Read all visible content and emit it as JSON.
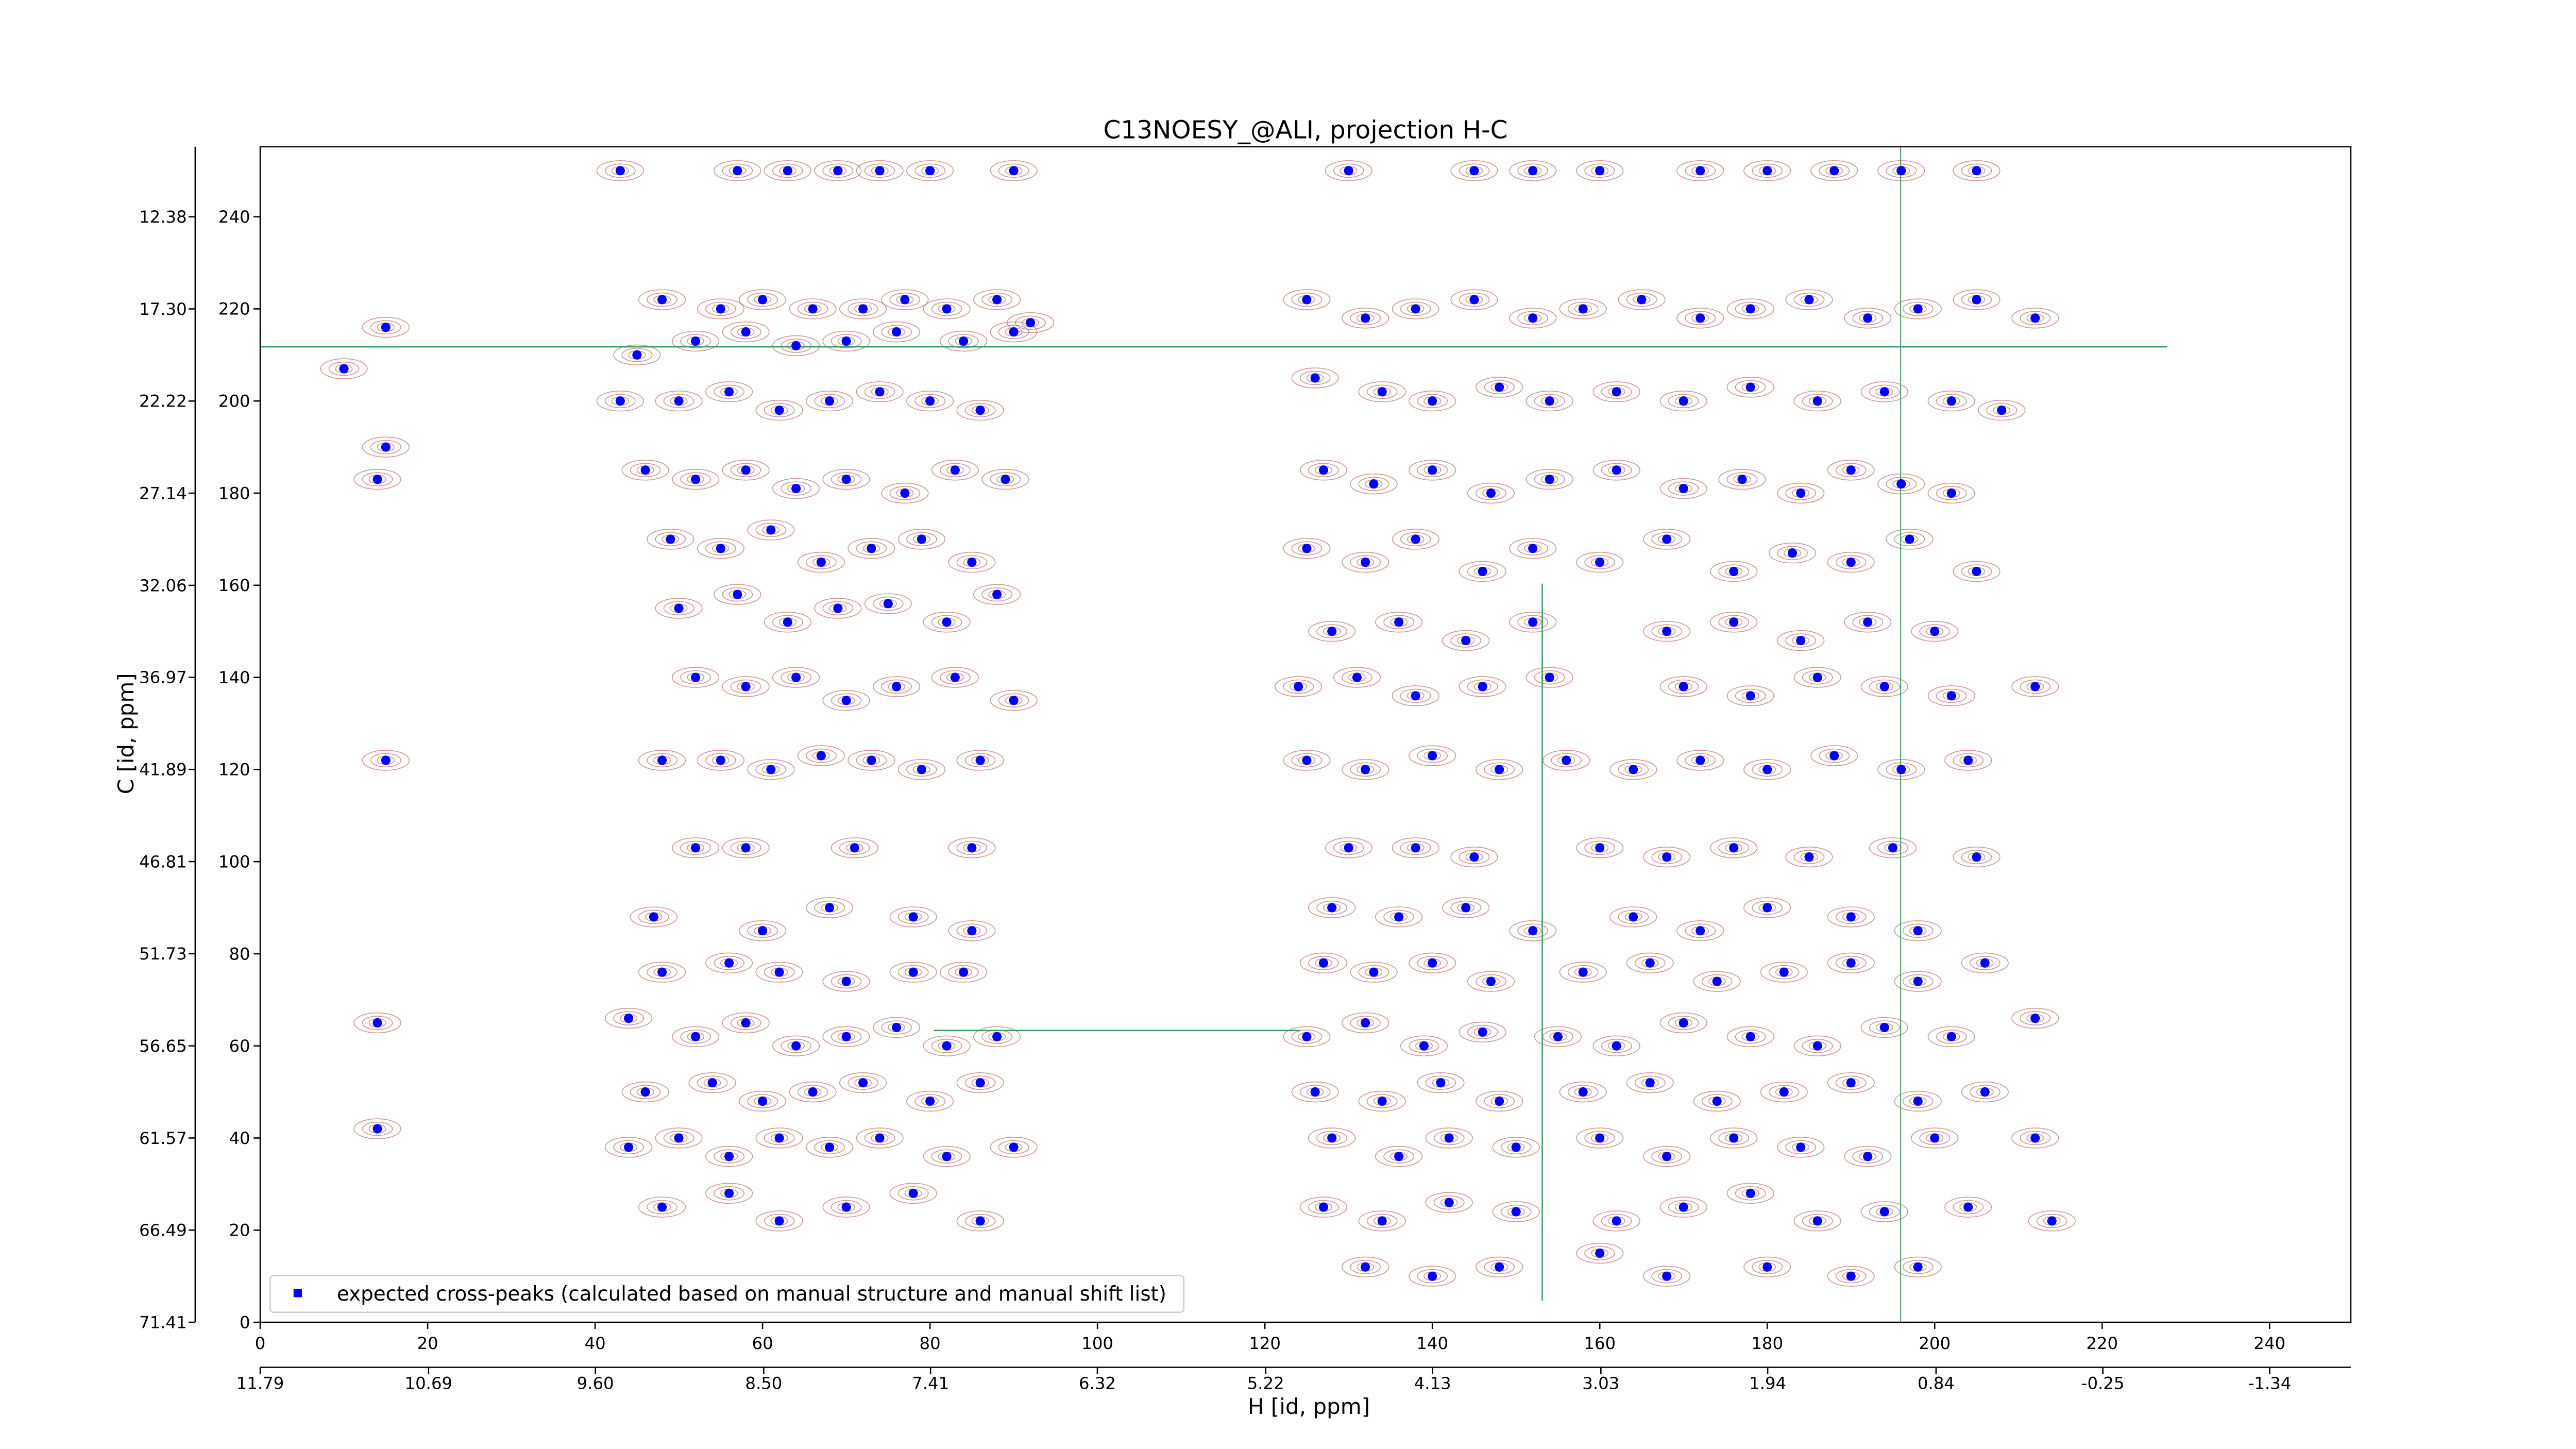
{
  "chart_data": {
    "type": "scatter",
    "title": "C13NOESY_@ALI, projection H-C",
    "xlabel": "H [id, ppm]",
    "ylabel": "C [id, ppm]",
    "xlim": [
      0,
      249.7
    ],
    "ylim": [
      0,
      255.2
    ],
    "xticks": [
      0,
      20,
      40,
      60,
      80,
      100,
      120,
      140,
      160,
      180,
      200,
      220,
      240
    ],
    "yticks": [
      0,
      20,
      40,
      60,
      80,
      100,
      120,
      140,
      160,
      180,
      200,
      220,
      240
    ],
    "x2lim": [
      11.79,
      -1.87
    ],
    "x2ticks": [
      11.79,
      10.69,
      {
        "value": 9.6,
        "label": "9.60"
      },
      {
        "value": 8.5,
        "label": "8.50"
      },
      7.41,
      6.32,
      5.22,
      4.13,
      3.03,
      1.94,
      0.84,
      -0.25,
      -1.34
    ],
    "y2lim": [
      71.41,
      8.64
    ],
    "y2ticks": [
      12.38,
      {
        "value": 17.3,
        "label": "17.30"
      },
      22.22,
      27.14,
      32.06,
      36.97,
      41.89,
      46.81,
      51.73,
      56.65,
      61.57,
      66.49,
      71.41
    ],
    "legend": "lower left",
    "x": [
      43,
      57,
      63,
      69,
      74,
      80,
      90,
      48,
      55,
      60,
      66,
      72,
      77,
      82,
      88,
      92,
      45,
      52,
      58,
      64,
      70,
      76,
      84,
      90,
      43,
      50,
      56,
      62,
      68,
      74,
      80,
      86,
      46,
      52,
      58,
      64,
      70,
      77,
      83,
      89,
      49,
      55,
      61,
      67,
      73,
      79,
      85,
      50,
      57,
      63,
      69,
      75,
      82,
      88,
      52,
      58,
      64,
      70,
      76,
      83,
      90,
      48,
      55,
      61,
      67,
      73,
      79,
      86,
      15,
      52,
      58,
      71,
      85,
      47,
      60,
      68,
      78,
      85,
      48,
      56,
      62,
      70,
      78,
      84,
      44,
      52,
      58,
      64,
      70,
      76,
      82,
      88,
      46,
      54,
      60,
      66,
      72,
      80,
      86,
      44,
      50,
      56,
      62,
      68,
      74,
      82,
      90,
      48,
      56,
      62,
      70,
      78,
      86,
      10,
      15,
      15,
      14,
      14,
      14,
      130,
      145,
      152,
      160,
      172,
      180,
      188,
      196,
      205,
      125,
      132,
      138,
      145,
      152,
      158,
      165,
      172,
      178,
      185,
      192,
      198,
      205,
      212,
      126,
      134,
      140,
      148,
      154,
      162,
      170,
      178,
      186,
      194,
      202,
      208,
      127,
      133,
      140,
      147,
      154,
      162,
      170,
      177,
      184,
      190,
      196,
      202,
      125,
      132,
      138,
      146,
      152,
      160,
      168,
      176,
      183,
      190,
      197,
      205,
      128,
      136,
      144,
      152,
      168,
      176,
      184,
      192,
      200,
      124,
      131,
      138,
      146,
      154,
      170,
      178,
      186,
      194,
      202,
      212,
      125,
      132,
      140,
      148,
      156,
      164,
      172,
      180,
      188,
      196,
      204,
      130,
      138,
      145,
      160,
      168,
      176,
      185,
      195,
      205,
      128,
      136,
      144,
      152,
      164,
      172,
      180,
      190,
      198,
      127,
      133,
      140,
      147,
      158,
      166,
      174,
      182,
      190,
      198,
      206,
      125,
      132,
      139,
      146,
      155,
      162,
      170,
      178,
      186,
      194,
      202,
      212,
      126,
      134,
      141,
      148,
      158,
      166,
      174,
      182,
      190,
      198,
      206,
      128,
      136,
      142,
      150,
      160,
      168,
      176,
      184,
      192,
      200,
      212,
      127,
      134,
      142,
      150,
      162,
      170,
      178,
      186,
      194,
      204,
      214,
      132,
      140,
      148,
      160,
      168,
      180,
      190,
      198
    ],
    "series": [
      {
        "name": "expected cross-peaks (calculated based on manual structure and manual shift list)",
        "color": "#0000ff",
        "values": [
          250,
          250,
          250,
          250,
          250,
          250,
          250,
          222,
          220,
          222,
          220,
          220,
          222,
          220,
          222,
          217,
          210,
          213,
          215,
          212,
          213,
          215,
          213,
          215,
          200,
          200,
          202,
          198,
          200,
          202,
          200,
          198,
          185,
          183,
          185,
          181,
          183,
          180,
          185,
          183,
          170,
          168,
          172,
          165,
          168,
          170,
          165,
          155,
          158,
          152,
          155,
          156,
          152,
          158,
          140,
          138,
          140,
          135,
          138,
          140,
          135,
          122,
          122,
          120,
          123,
          122,
          120,
          122,
          122,
          103,
          103,
          103,
          103,
          88,
          85,
          90,
          88,
          85,
          76,
          78,
          76,
          74,
          76,
          76,
          66,
          62,
          65,
          60,
          62,
          64,
          60,
          62,
          50,
          52,
          48,
          50,
          52,
          48,
          52,
          38,
          40,
          36,
          40,
          38,
          40,
          36,
          38,
          25,
          28,
          22,
          25,
          28,
          22,
          207,
          216,
          190,
          183,
          65,
          42,
          250,
          250,
          250,
          250,
          250,
          250,
          250,
          250,
          250,
          222,
          218,
          220,
          222,
          218,
          220,
          222,
          218,
          220,
          222,
          218,
          220,
          222,
          218,
          205,
          202,
          200,
          203,
          200,
          202,
          200,
          203,
          200,
          202,
          200,
          198,
          185,
          182,
          185,
          180,
          183,
          185,
          181,
          183,
          180,
          185,
          182,
          180,
          168,
          165,
          170,
          163,
          168,
          165,
          170,
          163,
          167,
          165,
          170,
          163,
          150,
          152,
          148,
          152,
          150,
          152,
          148,
          152,
          150,
          138,
          140,
          136,
          138,
          140,
          138,
          136,
          140,
          138,
          136,
          138,
          122,
          120,
          123,
          120,
          122,
          120,
          122,
          120,
          123,
          120,
          122,
          103,
          103,
          101,
          103,
          101,
          103,
          101,
          103,
          101,
          90,
          88,
          90,
          85,
          88,
          85,
          90,
          88,
          85,
          78,
          76,
          78,
          74,
          76,
          78,
          74,
          76,
          78,
          74,
          78,
          62,
          65,
          60,
          63,
          62,
          60,
          65,
          62,
          60,
          64,
          62,
          66,
          50,
          48,
          52,
          48,
          50,
          52,
          48,
          50,
          52,
          48,
          50,
          40,
          36,
          40,
          38,
          40,
          36,
          40,
          38,
          36,
          40,
          40,
          25,
          22,
          26,
          24,
          22,
          25,
          28,
          22,
          24,
          25,
          22,
          12,
          10,
          12,
          15,
          10,
          12,
          10,
          12
        ]
      }
    ]
  }
}
